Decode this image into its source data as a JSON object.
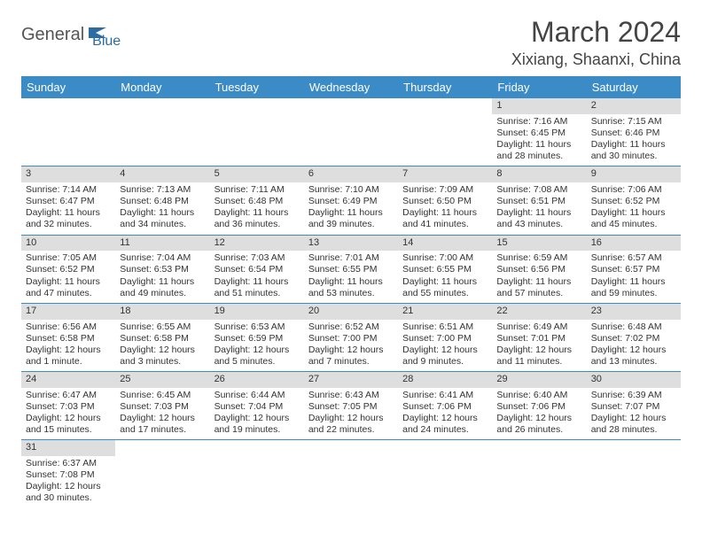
{
  "header": {
    "logo_part1": "General",
    "logo_part2": "Blue",
    "month_title": "March 2024",
    "location": "Xixiang, Shaanxi, China"
  },
  "colors": {
    "header_bg": "#3b8bc6",
    "header_text": "#ffffff",
    "daynum_bg": "#dedede",
    "row_border": "#3b8bc6",
    "logo_blue": "#2b6ca3"
  },
  "weekdays": [
    "Sunday",
    "Monday",
    "Tuesday",
    "Wednesday",
    "Thursday",
    "Friday",
    "Saturday"
  ],
  "weeks": [
    [
      null,
      null,
      null,
      null,
      null,
      {
        "n": "1",
        "sr": "Sunrise: 7:16 AM",
        "ss": "Sunset: 6:45 PM",
        "dl1": "Daylight: 11 hours",
        "dl2": "and 28 minutes."
      },
      {
        "n": "2",
        "sr": "Sunrise: 7:15 AM",
        "ss": "Sunset: 6:46 PM",
        "dl1": "Daylight: 11 hours",
        "dl2": "and 30 minutes."
      }
    ],
    [
      {
        "n": "3",
        "sr": "Sunrise: 7:14 AM",
        "ss": "Sunset: 6:47 PM",
        "dl1": "Daylight: 11 hours",
        "dl2": "and 32 minutes."
      },
      {
        "n": "4",
        "sr": "Sunrise: 7:13 AM",
        "ss": "Sunset: 6:48 PM",
        "dl1": "Daylight: 11 hours",
        "dl2": "and 34 minutes."
      },
      {
        "n": "5",
        "sr": "Sunrise: 7:11 AM",
        "ss": "Sunset: 6:48 PM",
        "dl1": "Daylight: 11 hours",
        "dl2": "and 36 minutes."
      },
      {
        "n": "6",
        "sr": "Sunrise: 7:10 AM",
        "ss": "Sunset: 6:49 PM",
        "dl1": "Daylight: 11 hours",
        "dl2": "and 39 minutes."
      },
      {
        "n": "7",
        "sr": "Sunrise: 7:09 AM",
        "ss": "Sunset: 6:50 PM",
        "dl1": "Daylight: 11 hours",
        "dl2": "and 41 minutes."
      },
      {
        "n": "8",
        "sr": "Sunrise: 7:08 AM",
        "ss": "Sunset: 6:51 PM",
        "dl1": "Daylight: 11 hours",
        "dl2": "and 43 minutes."
      },
      {
        "n": "9",
        "sr": "Sunrise: 7:06 AM",
        "ss": "Sunset: 6:52 PM",
        "dl1": "Daylight: 11 hours",
        "dl2": "and 45 minutes."
      }
    ],
    [
      {
        "n": "10",
        "sr": "Sunrise: 7:05 AM",
        "ss": "Sunset: 6:52 PM",
        "dl1": "Daylight: 11 hours",
        "dl2": "and 47 minutes."
      },
      {
        "n": "11",
        "sr": "Sunrise: 7:04 AM",
        "ss": "Sunset: 6:53 PM",
        "dl1": "Daylight: 11 hours",
        "dl2": "and 49 minutes."
      },
      {
        "n": "12",
        "sr": "Sunrise: 7:03 AM",
        "ss": "Sunset: 6:54 PM",
        "dl1": "Daylight: 11 hours",
        "dl2": "and 51 minutes."
      },
      {
        "n": "13",
        "sr": "Sunrise: 7:01 AM",
        "ss": "Sunset: 6:55 PM",
        "dl1": "Daylight: 11 hours",
        "dl2": "and 53 minutes."
      },
      {
        "n": "14",
        "sr": "Sunrise: 7:00 AM",
        "ss": "Sunset: 6:55 PM",
        "dl1": "Daylight: 11 hours",
        "dl2": "and 55 minutes."
      },
      {
        "n": "15",
        "sr": "Sunrise: 6:59 AM",
        "ss": "Sunset: 6:56 PM",
        "dl1": "Daylight: 11 hours",
        "dl2": "and 57 minutes."
      },
      {
        "n": "16",
        "sr": "Sunrise: 6:57 AM",
        "ss": "Sunset: 6:57 PM",
        "dl1": "Daylight: 11 hours",
        "dl2": "and 59 minutes."
      }
    ],
    [
      {
        "n": "17",
        "sr": "Sunrise: 6:56 AM",
        "ss": "Sunset: 6:58 PM",
        "dl1": "Daylight: 12 hours",
        "dl2": "and 1 minute."
      },
      {
        "n": "18",
        "sr": "Sunrise: 6:55 AM",
        "ss": "Sunset: 6:58 PM",
        "dl1": "Daylight: 12 hours",
        "dl2": "and 3 minutes."
      },
      {
        "n": "19",
        "sr": "Sunrise: 6:53 AM",
        "ss": "Sunset: 6:59 PM",
        "dl1": "Daylight: 12 hours",
        "dl2": "and 5 minutes."
      },
      {
        "n": "20",
        "sr": "Sunrise: 6:52 AM",
        "ss": "Sunset: 7:00 PM",
        "dl1": "Daylight: 12 hours",
        "dl2": "and 7 minutes."
      },
      {
        "n": "21",
        "sr": "Sunrise: 6:51 AM",
        "ss": "Sunset: 7:00 PM",
        "dl1": "Daylight: 12 hours",
        "dl2": "and 9 minutes."
      },
      {
        "n": "22",
        "sr": "Sunrise: 6:49 AM",
        "ss": "Sunset: 7:01 PM",
        "dl1": "Daylight: 12 hours",
        "dl2": "and 11 minutes."
      },
      {
        "n": "23",
        "sr": "Sunrise: 6:48 AM",
        "ss": "Sunset: 7:02 PM",
        "dl1": "Daylight: 12 hours",
        "dl2": "and 13 minutes."
      }
    ],
    [
      {
        "n": "24",
        "sr": "Sunrise: 6:47 AM",
        "ss": "Sunset: 7:03 PM",
        "dl1": "Daylight: 12 hours",
        "dl2": "and 15 minutes."
      },
      {
        "n": "25",
        "sr": "Sunrise: 6:45 AM",
        "ss": "Sunset: 7:03 PM",
        "dl1": "Daylight: 12 hours",
        "dl2": "and 17 minutes."
      },
      {
        "n": "26",
        "sr": "Sunrise: 6:44 AM",
        "ss": "Sunset: 7:04 PM",
        "dl1": "Daylight: 12 hours",
        "dl2": "and 19 minutes."
      },
      {
        "n": "27",
        "sr": "Sunrise: 6:43 AM",
        "ss": "Sunset: 7:05 PM",
        "dl1": "Daylight: 12 hours",
        "dl2": "and 22 minutes."
      },
      {
        "n": "28",
        "sr": "Sunrise: 6:41 AM",
        "ss": "Sunset: 7:06 PM",
        "dl1": "Daylight: 12 hours",
        "dl2": "and 24 minutes."
      },
      {
        "n": "29",
        "sr": "Sunrise: 6:40 AM",
        "ss": "Sunset: 7:06 PM",
        "dl1": "Daylight: 12 hours",
        "dl2": "and 26 minutes."
      },
      {
        "n": "30",
        "sr": "Sunrise: 6:39 AM",
        "ss": "Sunset: 7:07 PM",
        "dl1": "Daylight: 12 hours",
        "dl2": "and 28 minutes."
      }
    ],
    [
      {
        "n": "31",
        "sr": "Sunrise: 6:37 AM",
        "ss": "Sunset: 7:08 PM",
        "dl1": "Daylight: 12 hours",
        "dl2": "and 30 minutes."
      },
      null,
      null,
      null,
      null,
      null,
      null
    ]
  ]
}
